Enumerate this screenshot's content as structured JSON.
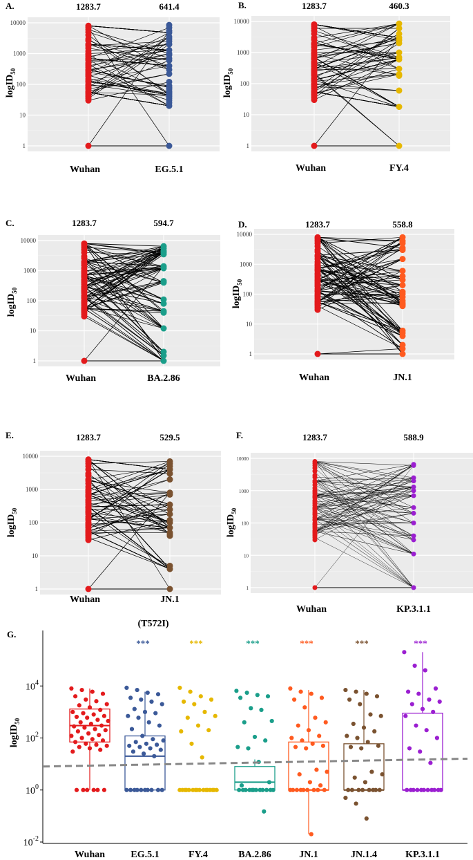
{
  "figure": {
    "colors": {
      "wuhan": "#e31a1c",
      "eg51": "#3b5998",
      "fy4": "#e6b800",
      "ba286": "#1a9e8a",
      "jn1": "#ff5a1f",
      "jn14": "#7a5230",
      "kp311": "#9b1fd1",
      "panel_bg": "#ebebeb",
      "dashed_line": "#888888"
    }
  },
  "chart_data": [
    {
      "id": "A",
      "letter": "A.",
      "type": "scatter",
      "subtype": "paired-line",
      "ylabel": "logID",
      "ylabel_sub": "50",
      "y_scale": "log10",
      "ylim": [
        1,
        10000
      ],
      "y_ticks": [
        "1",
        "10",
        "100",
        "1000",
        "10000"
      ],
      "categories": [
        "Wuhan",
        "EG.5.1"
      ],
      "gmt_labels": [
        "1283.7",
        "641.4"
      ],
      "colors": [
        "#e31a1c",
        "#3b5998"
      ],
      "left_values": [
        8000,
        7000,
        6000,
        5000,
        4000,
        3000,
        2600,
        2000,
        1800,
        1500,
        1200,
        1000,
        900,
        800,
        700,
        650,
        600,
        500,
        450,
        400,
        350,
        300,
        280,
        250,
        220,
        200,
        180,
        150,
        130,
        120,
        100,
        90,
        80,
        70,
        60,
        55,
        50,
        45,
        40,
        35,
        30,
        1
      ],
      "right_values": [
        8500,
        7000,
        5500,
        4800,
        3500,
        3000,
        2500,
        2000,
        1300,
        1000,
        900,
        700,
        600,
        400,
        300,
        220,
        120,
        90,
        80,
        70,
        60,
        55,
        50,
        45,
        40,
        35,
        30,
        25,
        20,
        1
      ]
    },
    {
      "id": "B",
      "letter": "B.",
      "type": "scatter",
      "subtype": "paired-line",
      "ylabel": "logID",
      "ylabel_sub": "50",
      "y_scale": "log10",
      "ylim": [
        1,
        10000
      ],
      "y_ticks": [
        "1",
        "10",
        "100",
        "1000",
        "10000"
      ],
      "categories": [
        "Wuhan",
        "FY.4"
      ],
      "gmt_labels": [
        "1283.7",
        "460.3"
      ],
      "colors": [
        "#e31a1c",
        "#e6b800"
      ],
      "left_values": [
        8000,
        7000,
        6000,
        5000,
        4000,
        3000,
        2600,
        2000,
        1800,
        1500,
        1200,
        1000,
        900,
        800,
        700,
        650,
        600,
        500,
        450,
        400,
        350,
        300,
        280,
        250,
        220,
        200,
        180,
        150,
        130,
        120,
        100,
        90,
        80,
        70,
        60,
        55,
        50,
        45,
        40,
        35,
        30,
        1
      ],
      "right_values": [
        8500,
        6000,
        4000,
        3000,
        2500,
        2000,
        1000,
        700,
        600,
        300,
        200,
        180,
        60,
        18,
        1
      ]
    },
    {
      "id": "C",
      "letter": "C.",
      "type": "scatter",
      "subtype": "paired-line",
      "ylabel": "logID",
      "ylabel_sub": "50",
      "y_scale": "log10",
      "ylim": [
        1,
        10000
      ],
      "y_ticks": [
        "1",
        "10",
        "100",
        "1000",
        "10000"
      ],
      "categories": [
        "Wuhan",
        "BA.2.86"
      ],
      "gmt_labels": [
        "1283.7",
        "594.7"
      ],
      "colors": [
        "#e31a1c",
        "#1a9e8a"
      ],
      "left_values": [
        8000,
        7000,
        6000,
        5000,
        4000,
        3000,
        2600,
        2000,
        1800,
        1500,
        1200,
        1000,
        900,
        800,
        700,
        650,
        600,
        500,
        450,
        400,
        350,
        300,
        280,
        250,
        220,
        200,
        180,
        150,
        130,
        120,
        100,
        90,
        80,
        70,
        60,
        55,
        50,
        45,
        40,
        35,
        30,
        1
      ],
      "right_values": [
        6500,
        5500,
        4500,
        4000,
        3500,
        1400,
        1200,
        450,
        400,
        110,
        80,
        45,
        40,
        12,
        2,
        1.5,
        1
      ]
    },
    {
      "id": "D",
      "letter": "D.",
      "type": "scatter",
      "subtype": "paired-line",
      "ylabel": "logID",
      "ylabel_sub": "50",
      "y_scale": "log10",
      "ylim": [
        1,
        10000
      ],
      "y_ticks": [
        "1",
        "10",
        "100",
        "1000",
        "10000"
      ],
      "categories": [
        "Wuhan",
        "JN.1"
      ],
      "gmt_labels": [
        "1283.7",
        "558.8"
      ],
      "colors": [
        "#e31a1c",
        "#ff5a1f"
      ],
      "left_values": [
        8000,
        7000,
        6000,
        5000,
        4000,
        3000,
        2600,
        2000,
        1800,
        1500,
        1200,
        1000,
        900,
        800,
        700,
        650,
        600,
        500,
        450,
        400,
        350,
        300,
        280,
        250,
        220,
        200,
        180,
        150,
        130,
        120,
        100,
        90,
        80,
        70,
        60,
        55,
        50,
        45,
        40,
        35,
        30,
        1
      ],
      "right_values": [
        8000,
        6000,
        5000,
        3500,
        3000,
        1500,
        600,
        400,
        300,
        200,
        120,
        100,
        80,
        60,
        50,
        45,
        40,
        6,
        5,
        4,
        2,
        1.5,
        1
      ]
    },
    {
      "id": "E",
      "letter": "E.",
      "type": "scatter",
      "subtype": "paired-line",
      "ylabel": "logID",
      "ylabel_sub": "50",
      "y_scale": "log10",
      "ylim": [
        1,
        10000
      ],
      "y_ticks": [
        "1",
        "10",
        "100",
        "1000",
        "10000"
      ],
      "categories": [
        "Wuhan",
        "JN.1"
      ],
      "category_sublabel": "(T572I)",
      "gmt_labels": [
        "1283.7",
        "529.5"
      ],
      "colors": [
        "#e31a1c",
        "#7a5230"
      ],
      "left_values": [
        8000,
        7000,
        6000,
        5000,
        4000,
        3000,
        2600,
        2000,
        1800,
        1500,
        1200,
        1000,
        900,
        800,
        700,
        650,
        600,
        500,
        450,
        400,
        350,
        300,
        280,
        250,
        220,
        200,
        180,
        150,
        130,
        120,
        100,
        90,
        80,
        70,
        60,
        55,
        50,
        45,
        40,
        35,
        30,
        1
      ],
      "right_values": [
        7000,
        6000,
        5000,
        4000,
        3000,
        2000,
        800,
        700,
        350,
        250,
        180,
        120,
        100,
        70,
        50,
        45,
        40,
        5,
        4,
        1
      ]
    },
    {
      "id": "F",
      "letter": "F.",
      "type": "scatter",
      "subtype": "paired-line",
      "ylabel": "logID",
      "ylabel_sub": "50",
      "y_scale": "log10",
      "ylim": [
        1,
        10000
      ],
      "y_ticks": [
        "1",
        "10",
        "100",
        "1000",
        "10000"
      ],
      "categories": [
        "Wuhan",
        "KP.3.1.1"
      ],
      "gmt_labels": [
        "1283.7",
        "588.9"
      ],
      "colors": [
        "#e31a1c",
        "#9b1fd1"
      ],
      "left_values": [
        8000,
        7000,
        6000,
        5000,
        4000,
        3000,
        2600,
        2000,
        1800,
        1500,
        1200,
        1000,
        900,
        800,
        700,
        650,
        600,
        500,
        450,
        400,
        350,
        300,
        280,
        250,
        220,
        200,
        180,
        150,
        130,
        120,
        100,
        90,
        80,
        70,
        60,
        55,
        50,
        45,
        40,
        35,
        30,
        1
      ],
      "right_values": [
        6500,
        6000,
        2500,
        2000,
        1300,
        1000,
        700,
        300,
        200,
        100,
        40,
        30,
        11,
        1
      ]
    },
    {
      "id": "G",
      "letter": "G.",
      "type": "box",
      "ylabel": "logID",
      "ylabel_sub": "50",
      "y_scale": "log10",
      "ylim": [
        0.01,
        1000000
      ],
      "y_ticks": [
        {
          "value": 0.01,
          "base": "10",
          "exp": "-2"
        },
        {
          "value": 1,
          "base": "10",
          "exp": "0"
        },
        {
          "value": 100,
          "base": "10",
          "exp": "2"
        },
        {
          "value": 10000,
          "base": "10",
          "exp": "4"
        }
      ],
      "categories": [
        "Wuhan",
        "EG.5.1",
        "FY.4",
        "BA.2.86",
        "JN.1",
        "JN.1.4",
        "KP.3.1.1"
      ],
      "colors": [
        "#e31a1c",
        "#3b5998",
        "#e6b800",
        "#1a9e8a",
        "#ff5a1f",
        "#7a5230",
        "#9b1fd1"
      ],
      "significance": [
        "",
        "***",
        "***",
        "***",
        "***",
        "***",
        "***"
      ],
      "boxes": [
        {
          "q1": 70,
          "median": 300,
          "q3": 1300,
          "whisker_low": 1,
          "whisker_high": 8000
        },
        {
          "q1": 1,
          "median": 20,
          "q3": 120,
          "whisker_low": 1,
          "whisker_high": 6000
        },
        {
          "q1": 1,
          "median": 1,
          "q3": 1,
          "whisker_low": 1,
          "whisker_high": 1
        },
        {
          "q1": 1,
          "median": 2,
          "q3": 8,
          "whisker_low": 1,
          "whisker_high": 15
        },
        {
          "q1": 1,
          "median": 1,
          "q3": 70,
          "whisker_low": 0.02,
          "whisker_high": 7000
        },
        {
          "q1": 1,
          "median": 1,
          "q3": 60,
          "whisker_low": 1,
          "whisker_high": 7000
        },
        {
          "q1": 1,
          "median": 1,
          "q3": 900,
          "whisker_low": 1,
          "whisker_high": 200000
        }
      ],
      "points": [
        [
          8000,
          7000,
          6000,
          5000,
          4000,
          3000,
          2600,
          2000,
          1800,
          1500,
          1200,
          1000,
          900,
          800,
          700,
          650,
          600,
          500,
          450,
          400,
          350,
          300,
          280,
          250,
          220,
          200,
          180,
          150,
          130,
          120,
          100,
          90,
          80,
          70,
          60,
          55,
          50,
          45,
          40,
          35,
          30,
          1,
          1,
          1,
          1,
          1,
          1
        ],
        [
          8500,
          7000,
          5500,
          4800,
          3500,
          3000,
          2500,
          2000,
          1300,
          1000,
          900,
          700,
          600,
          400,
          300,
          220,
          120,
          90,
          80,
          70,
          60,
          55,
          50,
          45,
          40,
          35,
          30,
          25,
          20,
          1,
          1,
          1,
          1,
          1,
          1,
          1,
          1,
          1,
          1
        ],
        [
          8500,
          6000,
          4000,
          3000,
          2500,
          2000,
          1000,
          700,
          600,
          300,
          200,
          180,
          60,
          18,
          1,
          1,
          1,
          1,
          1,
          1,
          1,
          1,
          1,
          1,
          1,
          1,
          1,
          1,
          1,
          1
        ],
        [
          6500,
          5500,
          4500,
          4000,
          3500,
          1400,
          1200,
          450,
          400,
          110,
          80,
          45,
          40,
          12,
          2,
          1.5,
          1,
          1,
          1,
          1,
          1,
          1,
          1,
          1,
          1,
          1,
          1,
          1,
          0.15
        ],
        [
          8000,
          6000,
          5000,
          3500,
          3000,
          1500,
          600,
          400,
          300,
          200,
          120,
          100,
          80,
          60,
          50,
          45,
          40,
          6,
          5,
          4,
          2,
          1.5,
          1,
          1,
          1,
          1,
          1,
          1,
          1,
          1,
          1,
          0.02
        ],
        [
          7000,
          6000,
          5000,
          4000,
          3000,
          2000,
          800,
          700,
          350,
          250,
          180,
          120,
          100,
          70,
          50,
          45,
          40,
          5,
          4,
          3,
          2,
          1,
          1,
          1,
          1,
          1,
          1,
          1,
          1,
          0.5,
          0.3,
          0.08
        ],
        [
          200000,
          60000,
          40000,
          8000,
          6000,
          5000,
          3000,
          2500,
          2000,
          1300,
          1000,
          700,
          300,
          200,
          100,
          40,
          30,
          11,
          1,
          1,
          1,
          1,
          1,
          1,
          1,
          1,
          1,
          1,
          1
        ]
      ],
      "reference_line": {
        "style": "dashed",
        "from": 8,
        "to": 16
      }
    }
  ]
}
